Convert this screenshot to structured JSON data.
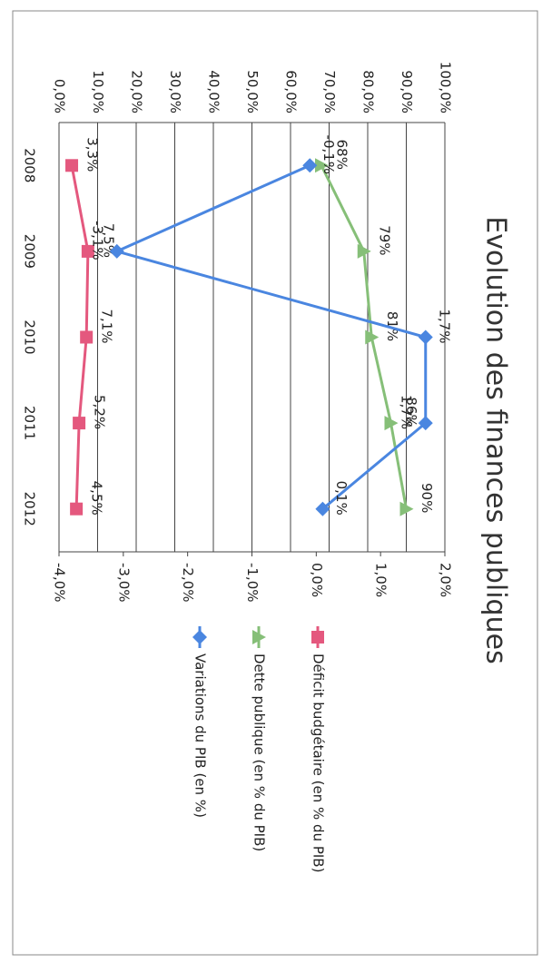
{
  "chart_data": {
    "type": "line",
    "title": "Evolution des finances publiques",
    "categories": [
      "2008",
      "2009",
      "2010",
      "2011",
      "2012"
    ],
    "ylim": [
      0,
      100
    ],
    "yticks": [
      {
        "value": 0,
        "label": "0,0%"
      },
      {
        "value": 10,
        "label": "10,0%"
      },
      {
        "value": 20,
        "label": "20,0%"
      },
      {
        "value": 30,
        "label": "30,0%"
      },
      {
        "value": 40,
        "label": "40,0%"
      },
      {
        "value": 50,
        "label": "50,0%"
      },
      {
        "value": 60,
        "label": "60,0%"
      },
      {
        "value": 70,
        "label": "70,0%"
      },
      {
        "value": 80,
        "label": "80,0%"
      },
      {
        "value": 90,
        "label": "90,0%"
      },
      {
        "value": 100,
        "label": "100,0%"
      }
    ],
    "y2lim": [
      -4,
      2
    ],
    "y2ticks": [
      {
        "value": -4,
        "label": "-4,0%"
      },
      {
        "value": -3,
        "label": "-3,0%"
      },
      {
        "value": -2,
        "label": "-2,0%"
      },
      {
        "value": -1,
        "label": "-1,0%"
      },
      {
        "value": 0,
        "label": "0,0%"
      },
      {
        "value": 1,
        "label": "1,0%"
      },
      {
        "value": 2,
        "label": "2,0%"
      }
    ],
    "grid": true,
    "series": [
      {
        "name": "Déficit budgétaire (en % du PIB)",
        "color": "#e4587e",
        "marker": "square",
        "values": [
          3.3,
          7.5,
          7.1,
          5.2,
          4.5
        ],
        "value_labels": [
          "3,3%",
          "7,5%",
          "7,1%",
          "5,2%",
          "4,5%"
        ]
      },
      {
        "name": "Dette publique (en % du PIB)",
        "color": "#86bf78",
        "marker": "triangle",
        "values": [
          68,
          79,
          81,
          86,
          90
        ],
        "value_labels": [
          "68%",
          "79%",
          "81%",
          "86%",
          "90%"
        ]
      },
      {
        "name": "Variations du PIB (en %)",
        "color": "#4a86e0",
        "marker": "diamond",
        "axis": "y2",
        "values": [
          -0.1,
          -3.1,
          1.7,
          1.7,
          0.1
        ],
        "value_labels": [
          "-0,1%",
          "-3,1%",
          "1,7%",
          "1,7%",
          "0,1%"
        ]
      }
    ]
  }
}
